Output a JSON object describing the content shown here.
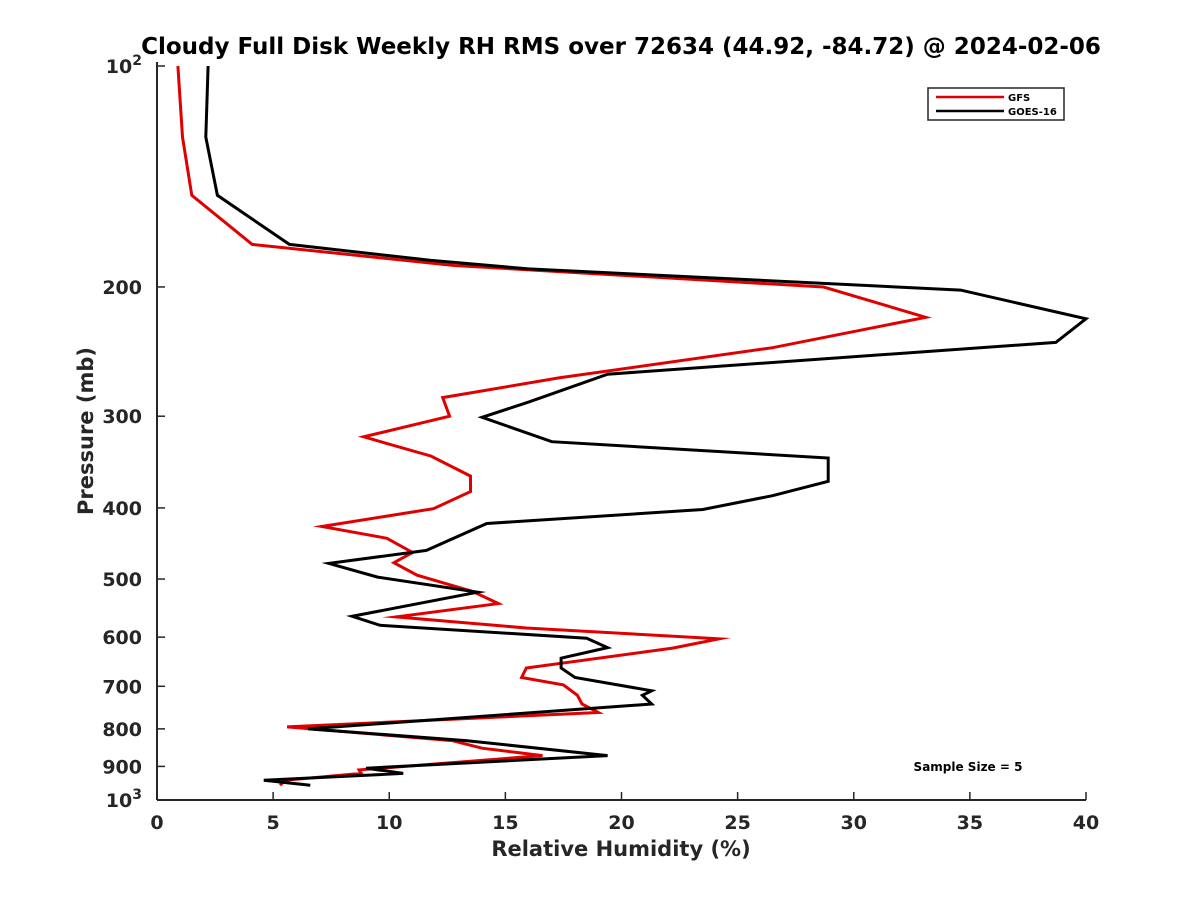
{
  "chart_data": {
    "type": "line",
    "title": "Cloudy Full Disk Weekly RH RMS over 72634 (44.92, -84.72) @ 2024-02-06",
    "xlabel": "Relative Humidity (%)",
    "ylabel": "Pressure (mb)",
    "xlim": [
      0,
      40
    ],
    "ylim": [
      100,
      1000
    ],
    "y_scale": "log",
    "y_reversed": true,
    "grid": false,
    "legend_position": "top-right",
    "x_ticks": [
      {
        "value": 0,
        "label": "0"
      },
      {
        "value": 5,
        "label": "5"
      },
      {
        "value": 10,
        "label": "10"
      },
      {
        "value": 15,
        "label": "15"
      },
      {
        "value": 20,
        "label": "20"
      },
      {
        "value": 25,
        "label": "25"
      },
      {
        "value": 30,
        "label": "30"
      },
      {
        "value": 35,
        "label": "35"
      },
      {
        "value": 40,
        "label": "40"
      }
    ],
    "y_ticks": [
      {
        "value": 100,
        "label": "10",
        "sup": "2"
      },
      {
        "value": 200,
        "label": "200"
      },
      {
        "value": 300,
        "label": "300"
      },
      {
        "value": 400,
        "label": "400"
      },
      {
        "value": 500,
        "label": "500"
      },
      {
        "value": 600,
        "label": "600"
      },
      {
        "value": 700,
        "label": "700"
      },
      {
        "value": 800,
        "label": "800"
      },
      {
        "value": 900,
        "label": "900"
      },
      {
        "value": 1000,
        "label": "10",
        "sup": "3"
      }
    ],
    "series": [
      {
        "name": "GFS",
        "color": "#e00000",
        "points": [
          [
            0.9,
            100
          ],
          [
            1.1,
            125
          ],
          [
            1.5,
            150
          ],
          [
            4.1,
            175
          ],
          [
            12.8,
            187
          ],
          [
            28.7,
            200
          ],
          [
            33.1,
            220
          ],
          [
            26.5,
            242
          ],
          [
            17.3,
            266
          ],
          [
            12.3,
            283
          ],
          [
            12.6,
            300
          ],
          [
            8.9,
            320
          ],
          [
            11.8,
            340
          ],
          [
            13.5,
            362
          ],
          [
            13.5,
            380
          ],
          [
            11.9,
            401
          ],
          [
            7.1,
            424
          ],
          [
            9.9,
            440
          ],
          [
            11.0,
            460
          ],
          [
            10.2,
            475
          ],
          [
            11.2,
            494
          ],
          [
            13.6,
            520
          ],
          [
            14.7,
            540
          ],
          [
            10.3,
            563
          ],
          [
            15.9,
            583
          ],
          [
            24.2,
            603
          ],
          [
            22.2,
            621
          ],
          [
            15.9,
            661
          ],
          [
            15.7,
            681
          ],
          [
            17.5,
            697
          ],
          [
            18.1,
            720
          ],
          [
            18.3,
            740
          ],
          [
            19.0,
            760
          ],
          [
            5.6,
            795
          ],
          [
            12.7,
            830
          ],
          [
            14.0,
            850
          ],
          [
            16.6,
            870
          ],
          [
            8.7,
            910
          ],
          [
            8.8,
            920
          ],
          [
            5.5,
            940
          ],
          [
            5.3,
            955
          ]
        ]
      },
      {
        "name": "GOES-16",
        "color": "#000000",
        "points": [
          [
            2.2,
            100
          ],
          [
            2.1,
            125
          ],
          [
            2.6,
            150
          ],
          [
            5.7,
            175
          ],
          [
            11.8,
            184
          ],
          [
            16.0,
            189
          ],
          [
            34.6,
            202
          ],
          [
            40.0,
            221
          ],
          [
            38.7,
            238
          ],
          [
            19.4,
            263
          ],
          [
            16.0,
            287
          ],
          [
            14.0,
            301
          ],
          [
            17.0,
            325
          ],
          [
            28.9,
            342
          ],
          [
            28.9,
            368
          ],
          [
            26.5,
            385
          ],
          [
            23.5,
            402
          ],
          [
            14.2,
            420
          ],
          [
            11.6,
            457
          ],
          [
            7.4,
            476
          ],
          [
            9.5,
            497
          ],
          [
            13.8,
            521
          ],
          [
            8.4,
            562
          ],
          [
            9.6,
            578
          ],
          [
            18.5,
            602
          ],
          [
            19.4,
            620
          ],
          [
            17.4,
            641
          ],
          [
            17.4,
            661
          ],
          [
            18.0,
            681
          ],
          [
            21.3,
            710
          ],
          [
            20.9,
            720
          ],
          [
            21.3,
            740
          ],
          [
            6.5,
            800
          ],
          [
            13.3,
            830
          ],
          [
            19.4,
            870
          ],
          [
            9.0,
            905
          ],
          [
            10.6,
            920
          ],
          [
            4.6,
            940
          ],
          [
            6.6,
            955
          ]
        ]
      }
    ],
    "annotations": [
      {
        "text": "Sample Size = 5"
      }
    ]
  }
}
